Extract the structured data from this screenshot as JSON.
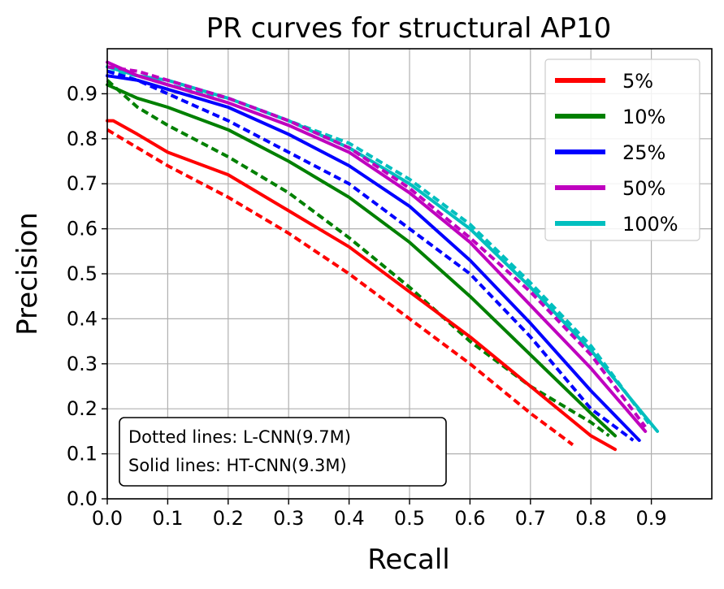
{
  "chart_data": {
    "type": "line",
    "title": "PR curves for structural AP10",
    "xlabel": "Recall",
    "ylabel": "Precision",
    "xlim": [
      0.0,
      1.0
    ],
    "ylim": [
      0.0,
      1.0
    ],
    "xticks": [
      "0.0",
      "0.1",
      "0.2",
      "0.3",
      "0.4",
      "0.5",
      "0.6",
      "0.7",
      "0.8",
      "0.9"
    ],
    "yticks": [
      "0.0",
      "0.1",
      "0.2",
      "0.3",
      "0.4",
      "0.5",
      "0.6",
      "0.7",
      "0.8",
      "0.9"
    ],
    "grid": true,
    "legend_position": "top-right",
    "legend": [
      {
        "label": "5%",
        "color": "#ff0000"
      },
      {
        "label": "10%",
        "color": "#008000"
      },
      {
        "label": "25%",
        "color": "#0000ff"
      },
      {
        "label": "50%",
        "color": "#bf00bf"
      },
      {
        "label": "100%",
        "color": "#00bfbf"
      }
    ],
    "annotation": [
      "Dotted lines: L-CNN(9.7M)",
      "Solid lines: HT-CNN(9.3M)"
    ],
    "series": [
      {
        "name": "5% HT-CNN(9.3M)",
        "color": "#ff0000",
        "style": "solid",
        "x": [
          0.0,
          0.01,
          0.05,
          0.1,
          0.2,
          0.3,
          0.4,
          0.5,
          0.6,
          0.7,
          0.8,
          0.84
        ],
        "y": [
          0.84,
          0.84,
          0.81,
          0.77,
          0.72,
          0.64,
          0.56,
          0.46,
          0.36,
          0.25,
          0.14,
          0.11
        ]
      },
      {
        "name": "5% L-CNN(9.7M)",
        "color": "#ff0000",
        "style": "dotted",
        "x": [
          0.0,
          0.05,
          0.1,
          0.2,
          0.3,
          0.4,
          0.5,
          0.6,
          0.7,
          0.77
        ],
        "y": [
          0.82,
          0.78,
          0.74,
          0.67,
          0.59,
          0.5,
          0.4,
          0.3,
          0.19,
          0.12
        ]
      },
      {
        "name": "10% HT-CNN(9.3M)",
        "color": "#008000",
        "style": "solid",
        "x": [
          0.0,
          0.05,
          0.1,
          0.2,
          0.3,
          0.4,
          0.5,
          0.6,
          0.7,
          0.8,
          0.84
        ],
        "y": [
          0.92,
          0.89,
          0.87,
          0.82,
          0.75,
          0.67,
          0.57,
          0.45,
          0.32,
          0.19,
          0.14
        ]
      },
      {
        "name": "10% L-CNN(9.7M)",
        "color": "#008000",
        "style": "dotted",
        "x": [
          0.0,
          0.05,
          0.1,
          0.2,
          0.3,
          0.4,
          0.5,
          0.6,
          0.7,
          0.8,
          0.83
        ],
        "y": [
          0.93,
          0.87,
          0.83,
          0.76,
          0.68,
          0.58,
          0.47,
          0.35,
          0.25,
          0.17,
          0.14
        ]
      },
      {
        "name": "25% HT-CNN(9.3M)",
        "color": "#0000ff",
        "style": "solid",
        "x": [
          0.0,
          0.05,
          0.1,
          0.2,
          0.3,
          0.4,
          0.5,
          0.6,
          0.7,
          0.8,
          0.88
        ],
        "y": [
          0.94,
          0.93,
          0.91,
          0.87,
          0.81,
          0.74,
          0.65,
          0.53,
          0.39,
          0.24,
          0.13
        ]
      },
      {
        "name": "25% L-CNN(9.7M)",
        "color": "#0000ff",
        "style": "dotted",
        "x": [
          0.0,
          0.05,
          0.1,
          0.2,
          0.3,
          0.4,
          0.5,
          0.6,
          0.7,
          0.8,
          0.87
        ],
        "y": [
          0.95,
          0.93,
          0.9,
          0.84,
          0.77,
          0.7,
          0.6,
          0.5,
          0.36,
          0.2,
          0.13
        ]
      },
      {
        "name": "50% HT-CNN(9.3M)",
        "color": "#bf00bf",
        "style": "solid",
        "x": [
          0.0,
          0.05,
          0.1,
          0.2,
          0.3,
          0.4,
          0.5,
          0.6,
          0.7,
          0.8,
          0.89
        ],
        "y": [
          0.97,
          0.94,
          0.92,
          0.88,
          0.83,
          0.77,
          0.68,
          0.57,
          0.43,
          0.29,
          0.15
        ]
      },
      {
        "name": "50% L-CNN(9.7M)",
        "color": "#bf00bf",
        "style": "dotted",
        "x": [
          0.0,
          0.05,
          0.1,
          0.2,
          0.3,
          0.4,
          0.5,
          0.6,
          0.7,
          0.8,
          0.89
        ],
        "y": [
          0.96,
          0.95,
          0.93,
          0.89,
          0.84,
          0.78,
          0.69,
          0.58,
          0.46,
          0.32,
          0.16
        ]
      },
      {
        "name": "100% HT-CNN(9.3M)",
        "color": "#00bfbf",
        "style": "solid",
        "x": [
          0.0,
          0.05,
          0.1,
          0.2,
          0.3,
          0.4,
          0.5,
          0.6,
          0.7,
          0.8,
          0.91
        ],
        "y": [
          0.96,
          0.94,
          0.93,
          0.89,
          0.84,
          0.78,
          0.7,
          0.6,
          0.47,
          0.33,
          0.15
        ]
      },
      {
        "name": "100% L-CNN(9.7M)",
        "color": "#00bfbf",
        "style": "dotted",
        "x": [
          0.0,
          0.05,
          0.1,
          0.2,
          0.3,
          0.4,
          0.5,
          0.6,
          0.7,
          0.8,
          0.9
        ],
        "y": [
          0.95,
          0.94,
          0.92,
          0.89,
          0.84,
          0.79,
          0.71,
          0.61,
          0.48,
          0.34,
          0.16
        ]
      }
    ]
  }
}
